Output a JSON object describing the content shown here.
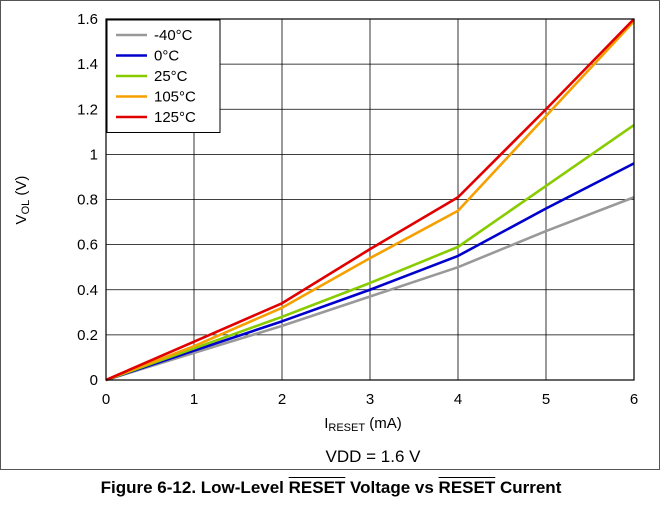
{
  "chart_data": {
    "type": "line",
    "xlabel_main": "I",
    "xlabel_sub": "RESET",
    "xlabel_unit": " (mA)",
    "ylabel_main": "V",
    "ylabel_sub": "OL",
    "ylabel_unit": " (V)",
    "note": "VDD = 1.6 V",
    "xlim": [
      0,
      6
    ],
    "ylim": [
      0,
      1.6
    ],
    "xticks": [
      "0",
      "1",
      "2",
      "3",
      "4",
      "5",
      "6"
    ],
    "yticks": [
      "0",
      "0.2",
      "0.4",
      "0.6",
      "0.8",
      "1",
      "1.2",
      "1.4",
      "1.6"
    ],
    "grid": true,
    "legend_position": "top-left",
    "x": [
      0,
      1,
      2,
      3,
      4,
      5,
      6
    ],
    "series": [
      {
        "name": "-40°C",
        "color": "#999999",
        "values": [
          0,
          0.12,
          0.24,
          0.37,
          0.5,
          0.66,
          0.81
        ]
      },
      {
        "name": "0°C",
        "color": "#0000cc",
        "values": [
          0,
          0.13,
          0.26,
          0.4,
          0.55,
          0.76,
          0.96
        ]
      },
      {
        "name": "25°C",
        "color": "#88cc00",
        "values": [
          0,
          0.14,
          0.28,
          0.43,
          0.59,
          0.86,
          1.13
        ]
      },
      {
        "name": "105°C",
        "color": "#f5a000",
        "values": [
          0,
          0.15,
          0.32,
          0.54,
          0.75,
          1.17,
          1.59
        ]
      },
      {
        "name": "125°C",
        "color": "#e00000",
        "values": [
          0,
          0.17,
          0.34,
          0.58,
          0.81,
          1.2,
          1.6
        ]
      }
    ]
  },
  "caption": {
    "prefix": "Figure 6-12. Low-Level ",
    "reset1": "RESET",
    "middle": " Voltage vs ",
    "reset2": "RESET",
    "suffix": " Current"
  }
}
